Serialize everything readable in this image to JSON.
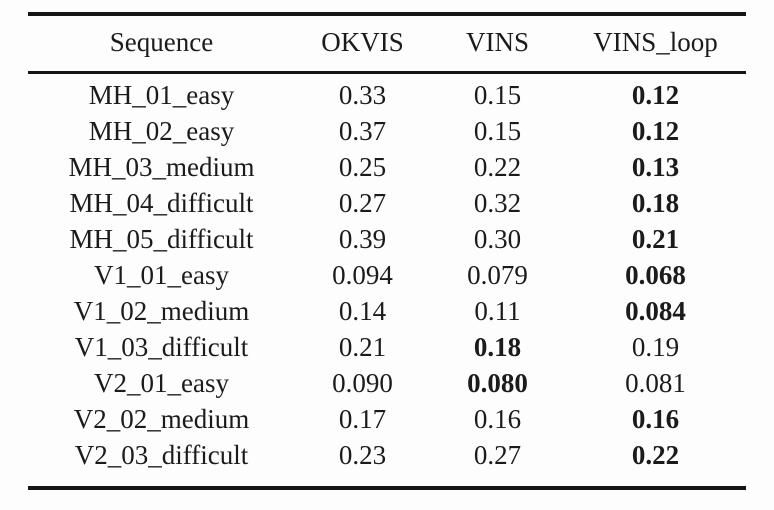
{
  "table": {
    "columns": [
      "Sequence",
      "OKVIS",
      "VINS",
      "VINS_loop"
    ],
    "rows": [
      {
        "sequence": "MH_01_easy",
        "values": [
          "0.33",
          "0.15",
          "0.12"
        ],
        "bold_index": 2
      },
      {
        "sequence": "MH_02_easy",
        "values": [
          "0.37",
          "0.15",
          "0.12"
        ],
        "bold_index": 2
      },
      {
        "sequence": "MH_03_medium",
        "values": [
          "0.25",
          "0.22",
          "0.13"
        ],
        "bold_index": 2
      },
      {
        "sequence": "MH_04_difficult",
        "values": [
          "0.27",
          "0.32",
          "0.18"
        ],
        "bold_index": 2
      },
      {
        "sequence": "MH_05_difficult",
        "values": [
          "0.39",
          "0.30",
          "0.21"
        ],
        "bold_index": 2
      },
      {
        "sequence": "V1_01_easy",
        "values": [
          "0.094",
          "0.079",
          "0.068"
        ],
        "bold_index": 2
      },
      {
        "sequence": "V1_02_medium",
        "values": [
          "0.14",
          "0.11",
          "0.084"
        ],
        "bold_index": 2
      },
      {
        "sequence": "V1_03_difficult",
        "values": [
          "0.21",
          "0.18",
          "0.19"
        ],
        "bold_index": 1
      },
      {
        "sequence": "V2_01_easy",
        "values": [
          "0.090",
          "0.080",
          "0.081"
        ],
        "bold_index": 1
      },
      {
        "sequence": "V2_02_medium",
        "values": [
          "0.17",
          "0.16",
          "0.16"
        ],
        "bold_index": 2
      },
      {
        "sequence": "V2_03_difficult",
        "values": [
          "0.23",
          "0.27",
          "0.22"
        ],
        "bold_index": 2
      }
    ]
  },
  "colors": {
    "background": "#fdfdfd",
    "text": "#1b1b1b",
    "rule": "#161616"
  }
}
